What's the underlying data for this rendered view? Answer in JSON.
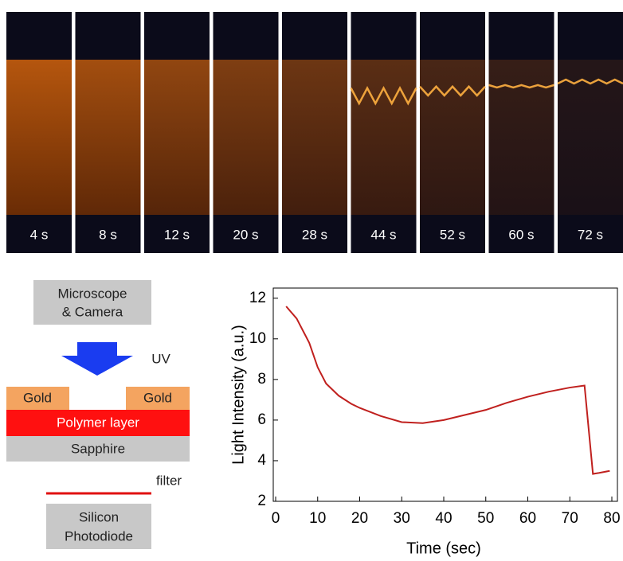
{
  "frames": [
    "4 s",
    "8 s",
    "12 s",
    "20 s",
    "28 s",
    "44 s",
    "52 s",
    "60 s",
    "72 s"
  ],
  "diagram": {
    "microscope": [
      "Microscope",
      "& Camera"
    ],
    "uv": "UV",
    "gold_left": "Gold",
    "gold_right": "Gold",
    "polymer": "Polymer layer",
    "sapphire": "Sapphire",
    "filter": "filter",
    "photodiode": [
      "Silicon",
      "Photodiode"
    ]
  },
  "chart_data": {
    "type": "line",
    "x_label": "Time (sec)",
    "y_label": "Light Intensity (a.u.)",
    "x": [
      2.5,
      5,
      8,
      10,
      12,
      15,
      18,
      20,
      25,
      30,
      35,
      40,
      45,
      50,
      55,
      60,
      65,
      70,
      73.5,
      75.5,
      77,
      79.5
    ],
    "series": [
      {
        "color": "#c0201e",
        "values": [
          11.6,
          11.0,
          9.8,
          8.6,
          7.8,
          7.2,
          6.8,
          6.6,
          6.2,
          5.9,
          5.85,
          6.0,
          6.25,
          6.5,
          6.85,
          7.15,
          7.4,
          7.6,
          7.7,
          3.35,
          3.4,
          3.5
        ]
      }
    ],
    "xlim": [
      0,
      80
    ],
    "ylim": [
      2,
      12.5
    ],
    "xticks": [
      0,
      10,
      20,
      30,
      40,
      50,
      60,
      70,
      80
    ],
    "yticks": [
      2,
      4,
      6,
      8,
      10,
      12
    ]
  }
}
